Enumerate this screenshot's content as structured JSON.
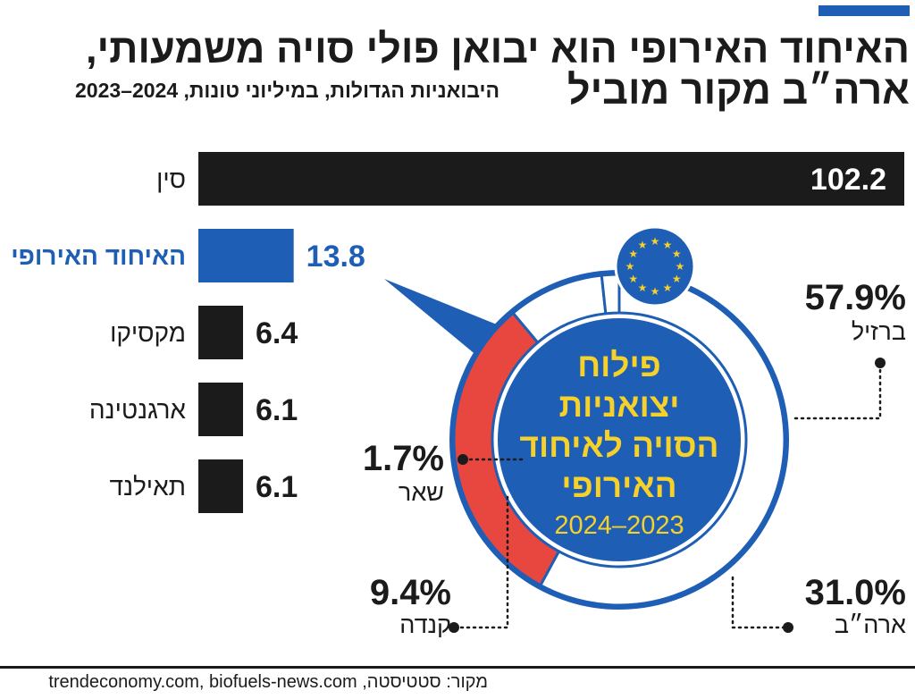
{
  "title": {
    "line1": "האיחוד האירופי הוא יבואן פולי סויה משמעותי,",
    "line2": "ארה״ב מקור מוביל",
    "subtitle": "היבואניות הגדולות, במיליוני טונות, 2024–2023"
  },
  "colors": {
    "accent": "#1f5eb5",
    "bar_dark": "#1b1b1b",
    "eu_blue": "#1f5eb5",
    "us_red": "#e8473f",
    "label_yellow": "#f5d12a",
    "star_yellow": "#f5d12a"
  },
  "donut_center": {
    "line1": "פילוח",
    "line2": "יצואניות",
    "line3": "הסויה לאיחוד",
    "line4": "האירופי",
    "years": "2024–2023",
    "emblem": "eu-flag-icon"
  },
  "chart_data": [
    {
      "type": "bar",
      "orientation": "horizontal",
      "unit": "מיליוני טונות",
      "categories": [
        "סין",
        "האיחוד האירופי",
        "מקסיקו",
        "ארגנטינה",
        "תאילנד"
      ],
      "values": [
        102.2,
        13.8,
        6.4,
        6.1,
        6.1
      ],
      "labels": [
        "102.2",
        "13.8",
        "6.4",
        "6.1",
        "6.1"
      ],
      "highlight": "האיחוד האירופי"
    },
    {
      "type": "pie",
      "variant": "donut",
      "title": "פילוח יצואניות הסויה לאיחוד האירופי 2024–2023",
      "categories": [
        "ברזיל",
        "ארה״ב",
        "קנדה",
        "שאר"
      ],
      "values": [
        57.9,
        31.0,
        9.4,
        1.7
      ],
      "labels": [
        "57.9%",
        "31.0%",
        "9.4%",
        "1.7%"
      ]
    }
  ],
  "source": "מקור: סטטיסטה, trendeconomy.com, biofuels-news.com"
}
